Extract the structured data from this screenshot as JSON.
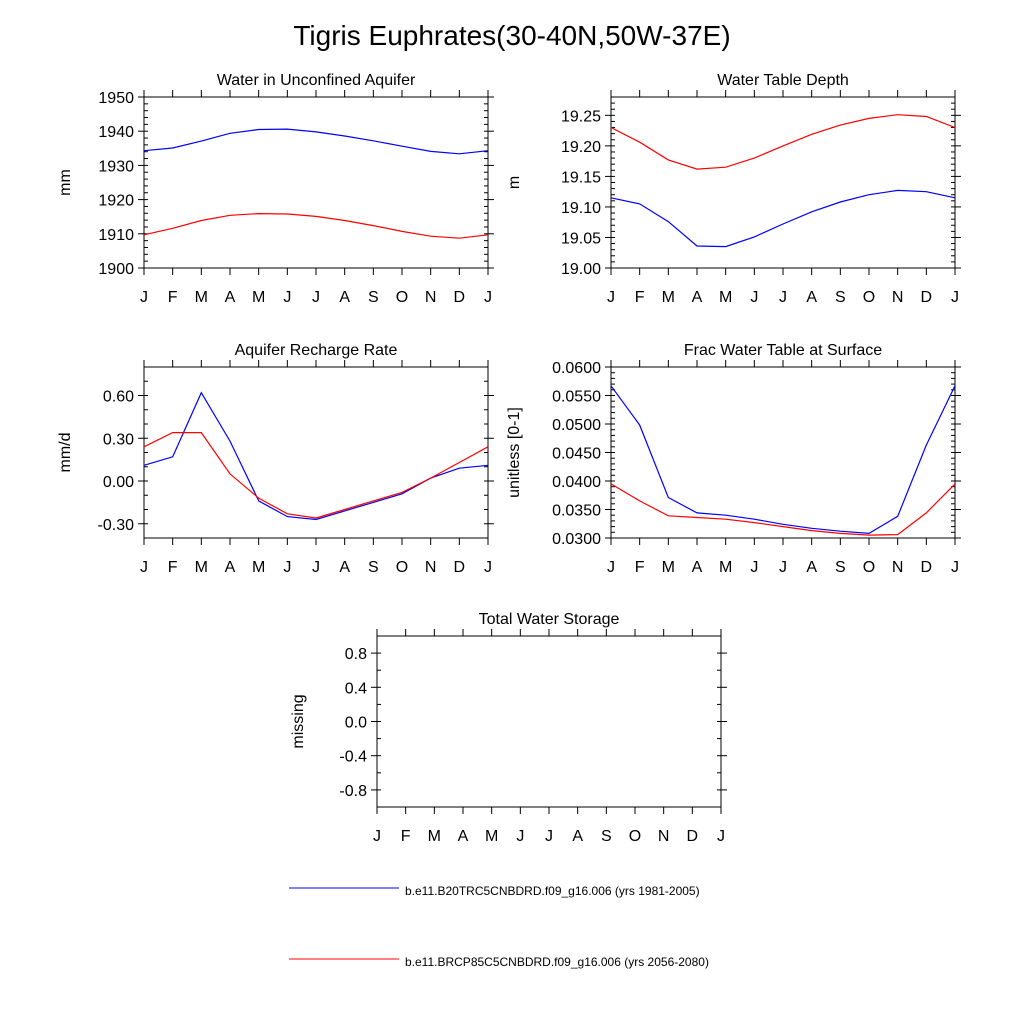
{
  "title": "Tigris Euphrates(30-40N,50W-37E)",
  "colors": {
    "series1": "#0000ff",
    "series2": "#ff0000"
  },
  "months": [
    "J",
    "F",
    "M",
    "A",
    "M",
    "J",
    "J",
    "A",
    "S",
    "O",
    "N",
    "D",
    "J"
  ],
  "legend": [
    {
      "label": "b.e11.B20TRC5CNBDRD.f09_g16.006 (yrs 1981-2005)",
      "color": "#0000ff"
    },
    {
      "label": "b.e11.BRCP85C5CNBDRD.f09_g16.006 (yrs 2056-2080)",
      "color": "#ff0000"
    }
  ],
  "chart_data": [
    {
      "type": "line",
      "title": "Water in Unconfined Aquifer",
      "ylabel": "mm",
      "ylim": [
        1900,
        1950
      ],
      "yticks": [
        1900,
        1910,
        1920,
        1930,
        1940,
        1950
      ],
      "ytick_labels": [
        "1900",
        "1910",
        "1920",
        "1930",
        "1940",
        "1950"
      ],
      "yminor": 2,
      "series": [
        {
          "name": "b.e11.B20TRC5CNBDRD.f09_g16.006 (yrs 1981-2005)",
          "color": "#0000ff",
          "values": [
            1934.3,
            1935.1,
            1937.1,
            1939.4,
            1940.5,
            1940.6,
            1939.8,
            1938.6,
            1937.2,
            1935.6,
            1934.1,
            1933.4,
            1934.3
          ]
        },
        {
          "name": "b.e11.BRCP85C5CNBDRD.f09_g16.006 (yrs 2056-2080)",
          "color": "#ff0000",
          "values": [
            1909.7,
            1911.6,
            1913.9,
            1915.4,
            1915.9,
            1915.8,
            1915.1,
            1913.9,
            1912.4,
            1910.7,
            1909.3,
            1908.7,
            1909.7
          ]
        }
      ]
    },
    {
      "type": "line",
      "title": "Water Table Depth",
      "ylabel": "m",
      "ylim": [
        19.0,
        19.28
      ],
      "yticks": [
        19.0,
        19.05,
        19.1,
        19.15,
        19.2,
        19.25
      ],
      "ytick_labels": [
        "19.00",
        "19.05",
        "19.10",
        "19.15",
        "19.20",
        "19.25"
      ],
      "yminor": 0.01,
      "series": [
        {
          "name": "b.e11.B20TRC5CNBDRD.f09_g16.006 (yrs 1981-2005)",
          "color": "#0000ff",
          "values": [
            19.115,
            19.105,
            19.076,
            19.036,
            19.035,
            19.051,
            19.072,
            19.092,
            19.108,
            19.12,
            19.127,
            19.125,
            19.115
          ]
        },
        {
          "name": "b.e11.BRCP85C5CNBDRD.f09_g16.006 (yrs 2056-2080)",
          "color": "#ff0000",
          "values": [
            19.23,
            19.206,
            19.177,
            19.162,
            19.165,
            19.18,
            19.2,
            19.219,
            19.234,
            19.245,
            19.251,
            19.248,
            19.23
          ]
        }
      ]
    },
    {
      "type": "line",
      "title": "Aquifer Recharge Rate",
      "ylabel": "mm/d",
      "ylim": [
        -0.4,
        0.8
      ],
      "yticks": [
        -0.3,
        0.0,
        0.3,
        0.6
      ],
      "ytick_labels": [
        "-0.30",
        "0.00",
        "0.30",
        "0.60"
      ],
      "yminor": 0.1,
      "series": [
        {
          "name": "b.e11.B20TRC5CNBDRD.f09_g16.006 (yrs 1981-2005)",
          "color": "#0000ff",
          "values": [
            0.11,
            0.17,
            0.62,
            0.28,
            -0.14,
            -0.25,
            -0.27,
            -0.21,
            -0.15,
            -0.09,
            0.02,
            0.09,
            0.11
          ]
        },
        {
          "name": "b.e11.BRCP85C5CNBDRD.f09_g16.006 (yrs 2056-2080)",
          "color": "#ff0000",
          "values": [
            0.24,
            0.34,
            0.34,
            0.05,
            -0.12,
            -0.23,
            -0.26,
            -0.2,
            -0.14,
            -0.08,
            0.02,
            0.13,
            0.24
          ]
        }
      ]
    },
    {
      "type": "line",
      "title": "Frac Water Table at Surface",
      "ylabel": "unitless [0-1]",
      "ylim": [
        0.03,
        0.06
      ],
      "yticks": [
        0.03,
        0.035,
        0.04,
        0.045,
        0.05,
        0.055,
        0.06
      ],
      "ytick_labels": [
        "0.0300",
        "0.0350",
        "0.0400",
        "0.0450",
        "0.0500",
        "0.0550",
        "0.0600"
      ],
      "yminor": 0.001,
      "series": [
        {
          "name": "b.e11.B20TRC5CNBDRD.f09_g16.006 (yrs 1981-2005)",
          "color": "#0000ff",
          "values": [
            0.0567,
            0.0498,
            0.0371,
            0.0344,
            0.034,
            0.0333,
            0.0324,
            0.0317,
            0.0312,
            0.0308,
            0.0338,
            0.0463,
            0.0567
          ]
        },
        {
          "name": "b.e11.BRCP85C5CNBDRD.f09_g16.006 (yrs 2056-2080)",
          "color": "#ff0000",
          "values": [
            0.0395,
            0.0365,
            0.0339,
            0.0336,
            0.0333,
            0.0327,
            0.032,
            0.0313,
            0.0308,
            0.0305,
            0.0306,
            0.0344,
            0.0395
          ]
        }
      ]
    },
    {
      "type": "line",
      "title": "Total Water Storage",
      "ylabel": "missing",
      "ylim": [
        -1.0,
        1.0
      ],
      "yticks": [
        -0.8,
        -0.4,
        0.0,
        0.4,
        0.8
      ],
      "ytick_labels": [
        "-0.8",
        "-0.4",
        "0.0",
        "0.4",
        "0.8"
      ],
      "yminor": 0.2,
      "series": []
    }
  ]
}
